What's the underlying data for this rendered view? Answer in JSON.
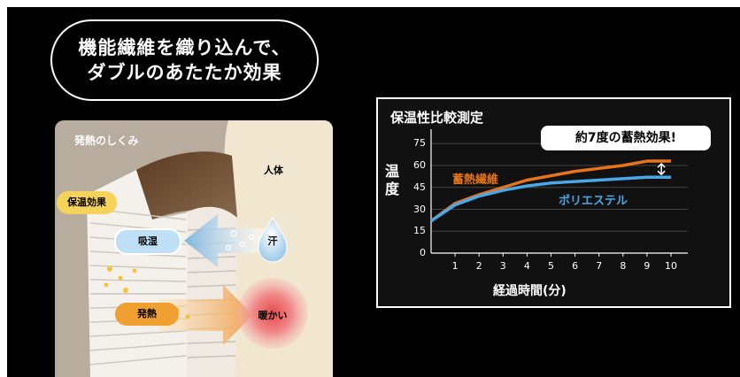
{
  "headline": {
    "line1": "機能繊維を織り込んで、",
    "line2": "ダブルのあたたか効果"
  },
  "mechanism": {
    "title": "発熱のしくみ",
    "body_label": "人体",
    "warm_effect_label": "保温効果",
    "absorb_label": "吸湿",
    "heat_label": "発熱",
    "sweat_label": "汗",
    "warm_label": "暖かい"
  },
  "chart_data": {
    "type": "line",
    "title": "保温性比較測定",
    "xlabel": "経過時間(分)",
    "ylabel": "温度",
    "x": [
      0,
      1,
      2,
      3,
      4,
      5,
      6,
      7,
      8,
      9,
      10
    ],
    "xticks": [
      "1",
      "2",
      "3",
      "4",
      "5",
      "6",
      "7",
      "8",
      "9",
      "10"
    ],
    "yticks": [
      "0",
      "15",
      "30",
      "45",
      "60",
      "75"
    ],
    "ylim": [
      0,
      80
    ],
    "xlim": [
      0,
      10.7
    ],
    "grid": true,
    "series": [
      {
        "name": "蓄熱繊維",
        "color": "#e8741c",
        "values": [
          22,
          34,
          40,
          45,
          50,
          53,
          56,
          58,
          60,
          63,
          63
        ]
      },
      {
        "name": "ポリエステル",
        "color": "#4aa8e6",
        "values": [
          22,
          33,
          39,
          43,
          46,
          48,
          49,
          50,
          51,
          52,
          52
        ]
      }
    ],
    "annotation": "約7度の蓄熱効果!"
  },
  "colors": {
    "background": "#000000",
    "chart_bg": "#111111",
    "orange": "#e8741c",
    "blue": "#4aa8e6"
  }
}
